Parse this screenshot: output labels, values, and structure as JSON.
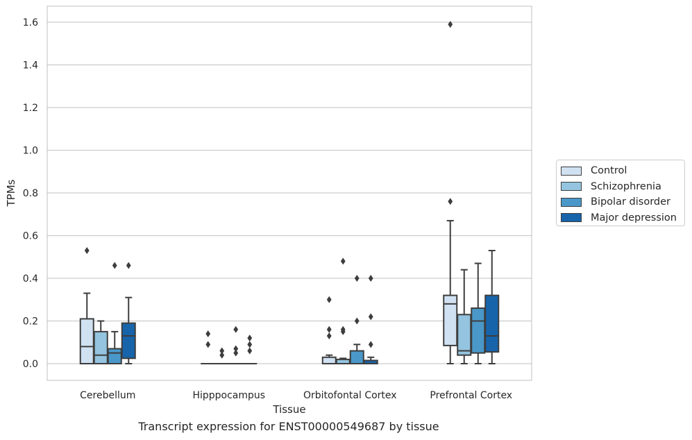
{
  "chart_data": {
    "type": "box",
    "title": "",
    "caption": "Transcript expression for ENST00000549687 by tissue",
    "xlabel": "Tissue",
    "ylabel": "TPMs",
    "ylim": [
      -0.08,
      1.67
    ],
    "yticks": [
      0.0,
      0.2,
      0.4,
      0.6,
      0.8,
      1.0,
      1.2,
      1.4,
      1.6
    ],
    "ytick_labels": [
      "0.0",
      "0.2",
      "0.4",
      "0.6",
      "0.8",
      "1.0",
      "1.2",
      "1.4",
      "1.6"
    ],
    "grid": "horizontal",
    "legend_position": "right",
    "categories": [
      "Cerebellum",
      "Hipppocampus",
      "Orbitofontal Cortex",
      "Prefrontal Cortex"
    ],
    "series": [
      {
        "name": "Control",
        "color": "#d0e1f2",
        "boxes": [
          {
            "q1": 0.0,
            "median": 0.08,
            "q3": 0.21,
            "whisker_low": 0.0,
            "whisker_high": 0.33,
            "outliers": [
              0.53
            ]
          },
          {
            "q1": 0.0,
            "median": 0.0,
            "q3": 0.0,
            "whisker_low": 0.0,
            "whisker_high": 0.0,
            "outliers": [
              0.09,
              0.14
            ]
          },
          {
            "q1": 0.0,
            "median": 0.0,
            "q3": 0.03,
            "whisker_low": 0.0,
            "whisker_high": 0.04,
            "outliers": [
              0.13,
              0.16,
              0.3
            ]
          },
          {
            "q1": 0.085,
            "median": 0.28,
            "q3": 0.32,
            "whisker_low": 0.0,
            "whisker_high": 0.67,
            "outliers": [
              0.76,
              1.59
            ]
          }
        ]
      },
      {
        "name": "Schizophrenia",
        "color": "#94c4df",
        "boxes": [
          {
            "q1": 0.0,
            "median": 0.04,
            "q3": 0.15,
            "whisker_low": 0.0,
            "whisker_high": 0.2,
            "outliers": []
          },
          {
            "q1": 0.0,
            "median": 0.0,
            "q3": 0.0,
            "whisker_low": 0.0,
            "whisker_high": 0.0,
            "outliers": [
              0.04,
              0.06
            ]
          },
          {
            "q1": 0.0,
            "median": 0.0,
            "q3": 0.02,
            "whisker_low": 0.0,
            "whisker_high": 0.025,
            "outliers": [
              0.15,
              0.16,
              0.48
            ]
          },
          {
            "q1": 0.04,
            "median": 0.06,
            "q3": 0.23,
            "whisker_low": 0.0,
            "whisker_high": 0.44,
            "outliers": []
          }
        ]
      },
      {
        "name": "Bipolar disorder",
        "color": "#4a98c9",
        "boxes": [
          {
            "q1": 0.0,
            "median": 0.05,
            "q3": 0.07,
            "whisker_low": 0.0,
            "whisker_high": 0.15,
            "outliers": [
              0.46
            ]
          },
          {
            "q1": 0.0,
            "median": 0.0,
            "q3": 0.0,
            "whisker_low": 0.0,
            "whisker_high": 0.0,
            "outliers": [
              0.05,
              0.07,
              0.16
            ]
          },
          {
            "q1": 0.0,
            "median": 0.0,
            "q3": 0.06,
            "whisker_low": 0.0,
            "whisker_high": 0.09,
            "outliers": [
              0.2,
              0.4
            ]
          },
          {
            "q1": 0.05,
            "median": 0.2,
            "q3": 0.26,
            "whisker_low": 0.0,
            "whisker_high": 0.47,
            "outliers": []
          }
        ]
      },
      {
        "name": "Major depression",
        "color": "#1764ab",
        "boxes": [
          {
            "q1": 0.025,
            "median": 0.13,
            "q3": 0.19,
            "whisker_low": 0.0,
            "whisker_high": 0.31,
            "outliers": [
              0.46
            ]
          },
          {
            "q1": 0.0,
            "median": 0.0,
            "q3": 0.0,
            "whisker_low": 0.0,
            "whisker_high": 0.0,
            "outliers": [
              0.06,
              0.09,
              0.12
            ]
          },
          {
            "q1": 0.0,
            "median": 0.0,
            "q3": 0.015,
            "whisker_low": 0.0,
            "whisker_high": 0.03,
            "outliers": [
              0.09,
              0.22,
              0.4
            ]
          },
          {
            "q1": 0.055,
            "median": 0.13,
            "q3": 0.32,
            "whisker_low": 0.0,
            "whisker_high": 0.53,
            "outliers": []
          }
        ]
      }
    ]
  }
}
